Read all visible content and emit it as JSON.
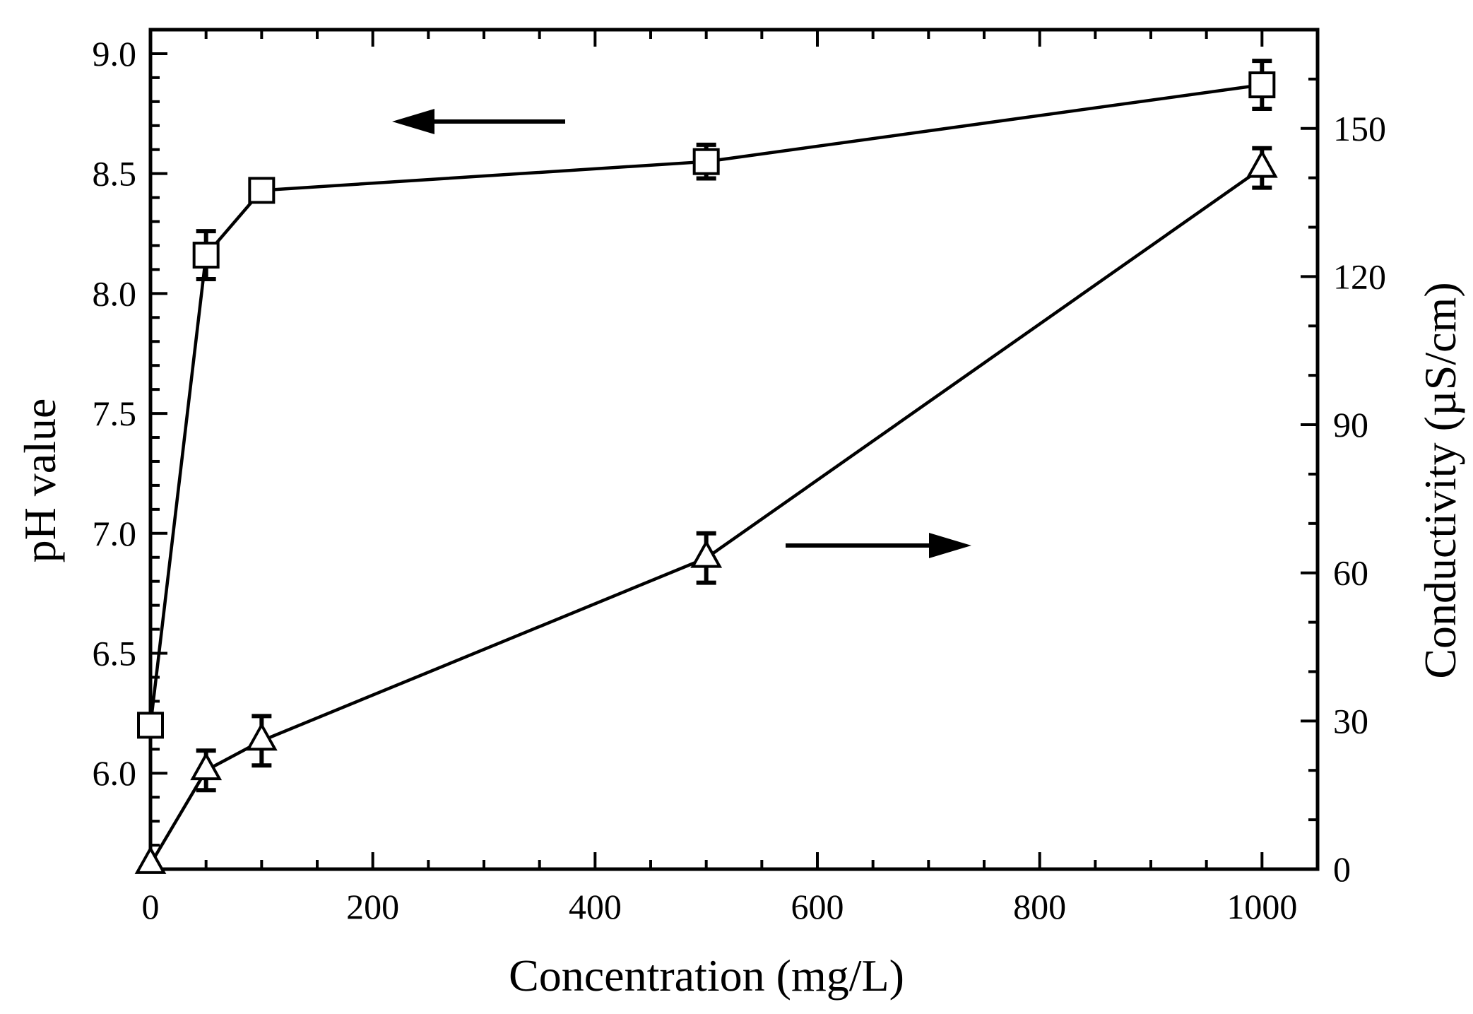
{
  "chart_data": {
    "type": "line",
    "title": "",
    "xlabel": "Concentration (mg/L)",
    "ylabel": "pH value",
    "y2label": "Conductivity (µS/cm)",
    "xlim": [
      0,
      1050
    ],
    "ylim": [
      5.6,
      9.1
    ],
    "y2lim": [
      0,
      170
    ],
    "xticks": [
      0,
      200,
      400,
      600,
      800,
      1000
    ],
    "xtick_labels": [
      "0",
      "200",
      "400",
      "600",
      "800",
      "1000"
    ],
    "yticks": [
      6.0,
      6.5,
      7.0,
      7.5,
      8.0,
      8.5,
      9.0
    ],
    "ytick_labels": [
      "6.0",
      "6.5",
      "7.0",
      "7.5",
      "8.0",
      "8.5",
      "9.0"
    ],
    "y2ticks": [
      0,
      30,
      60,
      90,
      120,
      150
    ],
    "y2tick_labels": [
      "0",
      "30",
      "60",
      "90",
      "120",
      "150"
    ],
    "series": [
      {
        "name": "pH value",
        "axis": "left",
        "marker": "square",
        "x": [
          0,
          50,
          100,
          500,
          1000
        ],
        "y": [
          6.2,
          8.16,
          8.43,
          8.55,
          8.87
        ],
        "err": [
          0,
          0.1,
          0.03,
          0.07,
          0.1
        ]
      },
      {
        "name": "Conductivity",
        "axis": "right",
        "marker": "triangle",
        "x": [
          0,
          50,
          100,
          500,
          1000
        ],
        "y": [
          1,
          20,
          26,
          63,
          142
        ],
        "err": [
          0,
          4,
          5,
          5,
          4
        ]
      }
    ],
    "annotations": [
      {
        "type": "arrow",
        "direction": "left",
        "points_to": "pH value axis"
      },
      {
        "type": "arrow",
        "direction": "right",
        "points_to": "Conductivity axis"
      }
    ],
    "grid": false,
    "legend": "none"
  }
}
